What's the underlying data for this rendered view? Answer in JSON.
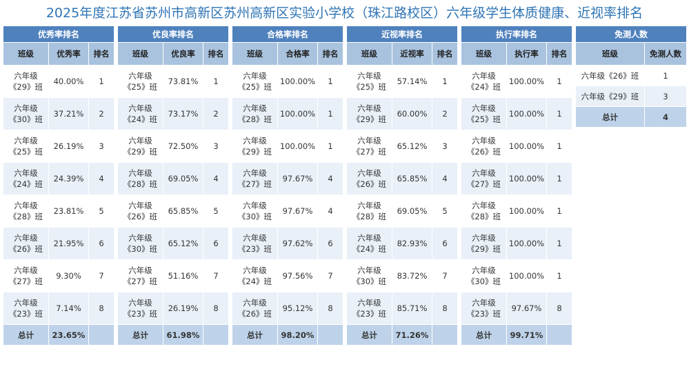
{
  "title": "2025年度江苏省苏州市高新区苏州高新区实验小学校（珠江路校区）六年级学生体质健康、近视率排名",
  "tables": [
    {
      "title": "优秀率排名",
      "headers": [
        "班级",
        "优秀率",
        "排名"
      ],
      "rows": [
        [
          "六年级《29》班",
          "40.00%",
          "1"
        ],
        [
          "六年级《30》班",
          "37.21%",
          "2"
        ],
        [
          "六年级《25》班",
          "26.19%",
          "3"
        ],
        [
          "六年级《24》班",
          "24.39%",
          "4"
        ],
        [
          "六年级《28》班",
          "23.81%",
          "5"
        ],
        [
          "六年级《26》班",
          "21.95%",
          "6"
        ],
        [
          "六年级《27》班",
          "9.30%",
          "7"
        ],
        [
          "六年级《23》班",
          "7.14%",
          "8"
        ]
      ],
      "total": {
        "label": "总计",
        "value": "23.65%"
      }
    },
    {
      "title": "优良率排名",
      "headers": [
        "班级",
        "优良率",
        "排名"
      ],
      "rows": [
        [
          "六年级《25》班",
          "73.81%",
          "1"
        ],
        [
          "六年级《24》班",
          "73.17%",
          "2"
        ],
        [
          "六年级《29》班",
          "72.50%",
          "3"
        ],
        [
          "六年级《28》班",
          "69.05%",
          "4"
        ],
        [
          "六年级《26》班",
          "65.85%",
          "5"
        ],
        [
          "六年级《30》班",
          "65.12%",
          "6"
        ],
        [
          "六年级《27》班",
          "51.16%",
          "7"
        ],
        [
          "六年级《23》班",
          "26.19%",
          "8"
        ]
      ],
      "total": {
        "label": "总计",
        "value": "61.98%"
      }
    },
    {
      "title": "合格率排名",
      "headers": [
        "班级",
        "合格率",
        "排名"
      ],
      "rows": [
        [
          "六年级《25》班",
          "100.00%",
          "1"
        ],
        [
          "六年级《28》班",
          "100.00%",
          "1"
        ],
        [
          "六年级《29》班",
          "100.00%",
          "1"
        ],
        [
          "六年级《27》班",
          "97.67%",
          "4"
        ],
        [
          "六年级《30》班",
          "97.67%",
          "4"
        ],
        [
          "六年级《23》班",
          "97.62%",
          "6"
        ],
        [
          "六年级《24》班",
          "97.56%",
          "7"
        ],
        [
          "六年级《26》班",
          "95.12%",
          "8"
        ]
      ],
      "total": {
        "label": "总计",
        "value": "98.20%"
      }
    },
    {
      "title": "近视率排名",
      "headers": [
        "班级",
        "近视率",
        "排名"
      ],
      "rows": [
        [
          "六年级《25》班",
          "57.14%",
          "1"
        ],
        [
          "六年级《29》班",
          "60.00%",
          "2"
        ],
        [
          "六年级《27》班",
          "65.12%",
          "3"
        ],
        [
          "六年级《26》班",
          "65.85%",
          "4"
        ],
        [
          "六年级《28》班",
          "69.05%",
          "5"
        ],
        [
          "六年级《24》班",
          "82.93%",
          "6"
        ],
        [
          "六年级《30》班",
          "83.72%",
          "7"
        ],
        [
          "六年级《23》班",
          "85.71%",
          "8"
        ]
      ],
      "total": {
        "label": "总计",
        "value": "71.26%"
      }
    },
    {
      "title": "执行率排名",
      "headers": [
        "班级",
        "执行率",
        "排名"
      ],
      "rows": [
        [
          "六年级《24》班",
          "100.00%",
          "1"
        ],
        [
          "六年级《25》班",
          "100.00%",
          "1"
        ],
        [
          "六年级《26》班",
          "100.00%",
          "1"
        ],
        [
          "六年级《27》班",
          "100.00%",
          "1"
        ],
        [
          "六年级《28》班",
          "100.00%",
          "1"
        ],
        [
          "六年级《29》班",
          "100.00%",
          "1"
        ],
        [
          "六年级《30》班",
          "100.00%",
          "1"
        ],
        [
          "六年级《23》班",
          "97.67%",
          "8"
        ]
      ],
      "total": {
        "label": "总计",
        "value": "99.71%"
      }
    }
  ],
  "exempt": {
    "title": "免测人数",
    "headers": [
      "班级",
      "免测人数"
    ],
    "rows": [
      [
        "六年级《26》班",
        "1"
      ],
      [
        "六年级《29》班",
        "3"
      ]
    ],
    "total": {
      "label": "总计",
      "value": "4"
    }
  }
}
